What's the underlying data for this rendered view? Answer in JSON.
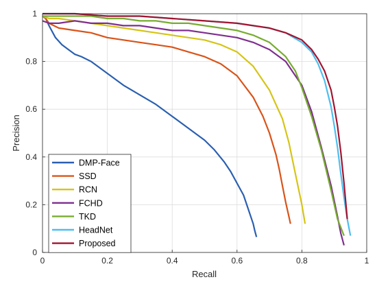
{
  "chart_data": {
    "type": "line",
    "title": "",
    "xlabel": "Recall",
    "ylabel": "Precision",
    "xlim": [
      0,
      1
    ],
    "ylim": [
      0,
      1
    ],
    "xticks": [
      "0",
      "0.2",
      "0.4",
      "0.6",
      "0.8",
      "1"
    ],
    "yticks": [
      "0",
      "0.2",
      "0.4",
      "0.6",
      "0.8",
      "1"
    ],
    "grid": true,
    "legend_position": "bottom-left",
    "series": [
      {
        "name": "DMP-Face",
        "color": "#2a5fb0",
        "x": [
          0.0,
          0.01,
          0.02,
          0.04,
          0.06,
          0.08,
          0.1,
          0.12,
          0.15,
          0.2,
          0.25,
          0.3,
          0.35,
          0.4,
          0.45,
          0.5,
          0.53,
          0.56,
          0.58,
          0.6,
          0.62,
          0.63,
          0.64,
          0.65,
          0.655,
          0.66
        ],
        "y": [
          0.99,
          0.98,
          0.95,
          0.9,
          0.87,
          0.85,
          0.83,
          0.82,
          0.8,
          0.75,
          0.7,
          0.66,
          0.62,
          0.57,
          0.52,
          0.47,
          0.43,
          0.38,
          0.34,
          0.29,
          0.24,
          0.2,
          0.16,
          0.12,
          0.09,
          0.065
        ]
      },
      {
        "name": "SSD",
        "color": "#d95319",
        "x": [
          0.0,
          0.01,
          0.02,
          0.05,
          0.1,
          0.15,
          0.2,
          0.25,
          0.3,
          0.35,
          0.4,
          0.45,
          0.5,
          0.55,
          0.6,
          0.65,
          0.68,
          0.7,
          0.72,
          0.73,
          0.74,
          0.75,
          0.76,
          0.765
        ],
        "y": [
          0.99,
          0.98,
          0.96,
          0.94,
          0.93,
          0.92,
          0.9,
          0.89,
          0.88,
          0.87,
          0.86,
          0.84,
          0.82,
          0.79,
          0.74,
          0.65,
          0.57,
          0.5,
          0.41,
          0.35,
          0.28,
          0.21,
          0.15,
          0.12
        ]
      },
      {
        "name": "RCN",
        "color": "#d6c416",
        "x": [
          0.0,
          0.02,
          0.05,
          0.1,
          0.15,
          0.2,
          0.25,
          0.3,
          0.35,
          0.4,
          0.45,
          0.5,
          0.55,
          0.6,
          0.65,
          0.7,
          0.74,
          0.76,
          0.78,
          0.8,
          0.81
        ],
        "y": [
          0.99,
          0.98,
          0.98,
          0.97,
          0.96,
          0.95,
          0.94,
          0.93,
          0.92,
          0.91,
          0.9,
          0.89,
          0.87,
          0.84,
          0.78,
          0.68,
          0.56,
          0.46,
          0.33,
          0.2,
          0.12
        ]
      },
      {
        "name": "FCHD",
        "color": "#7e2f8e",
        "x": [
          0.0,
          0.02,
          0.05,
          0.1,
          0.15,
          0.2,
          0.25,
          0.3,
          0.35,
          0.4,
          0.45,
          0.5,
          0.55,
          0.6,
          0.65,
          0.7,
          0.75,
          0.8,
          0.83,
          0.86,
          0.89,
          0.91,
          0.92,
          0.93
        ],
        "y": [
          0.97,
          0.96,
          0.96,
          0.97,
          0.96,
          0.96,
          0.95,
          0.95,
          0.94,
          0.93,
          0.93,
          0.92,
          0.91,
          0.9,
          0.88,
          0.85,
          0.8,
          0.7,
          0.59,
          0.44,
          0.28,
          0.15,
          0.08,
          0.03
        ]
      },
      {
        "name": "TKD",
        "color": "#77ac30",
        "x": [
          0.0,
          0.02,
          0.05,
          0.1,
          0.15,
          0.2,
          0.25,
          0.3,
          0.35,
          0.4,
          0.45,
          0.5,
          0.55,
          0.6,
          0.65,
          0.7,
          0.75,
          0.78,
          0.8,
          0.83,
          0.86,
          0.89,
          0.91,
          0.93
        ],
        "y": [
          0.99,
          0.99,
          0.99,
          0.99,
          0.99,
          0.98,
          0.98,
          0.97,
          0.97,
          0.96,
          0.96,
          0.95,
          0.94,
          0.93,
          0.91,
          0.88,
          0.82,
          0.76,
          0.69,
          0.57,
          0.43,
          0.26,
          0.14,
          0.07
        ]
      },
      {
        "name": "HeadNet",
        "color": "#4dbeee",
        "x": [
          0.0,
          0.05,
          0.1,
          0.2,
          0.3,
          0.4,
          0.5,
          0.6,
          0.65,
          0.7,
          0.75,
          0.8,
          0.83,
          0.85,
          0.87,
          0.89,
          0.9,
          0.91,
          0.92,
          0.93,
          0.94,
          0.95
        ],
        "y": [
          1.0,
          1.0,
          1.0,
          0.99,
          0.99,
          0.98,
          0.97,
          0.96,
          0.95,
          0.94,
          0.92,
          0.88,
          0.84,
          0.79,
          0.72,
          0.61,
          0.53,
          0.44,
          0.33,
          0.23,
          0.14,
          0.07
        ]
      },
      {
        "name": "Proposed",
        "color": "#a2142f",
        "x": [
          0.0,
          0.05,
          0.1,
          0.2,
          0.3,
          0.4,
          0.5,
          0.6,
          0.65,
          0.7,
          0.75,
          0.8,
          0.83,
          0.85,
          0.87,
          0.89,
          0.9,
          0.91,
          0.92,
          0.93,
          0.94
        ],
        "y": [
          1.0,
          1.0,
          1.0,
          0.99,
          0.99,
          0.98,
          0.97,
          0.96,
          0.95,
          0.94,
          0.92,
          0.89,
          0.85,
          0.81,
          0.76,
          0.68,
          0.61,
          0.53,
          0.42,
          0.29,
          0.14
        ]
      }
    ]
  }
}
